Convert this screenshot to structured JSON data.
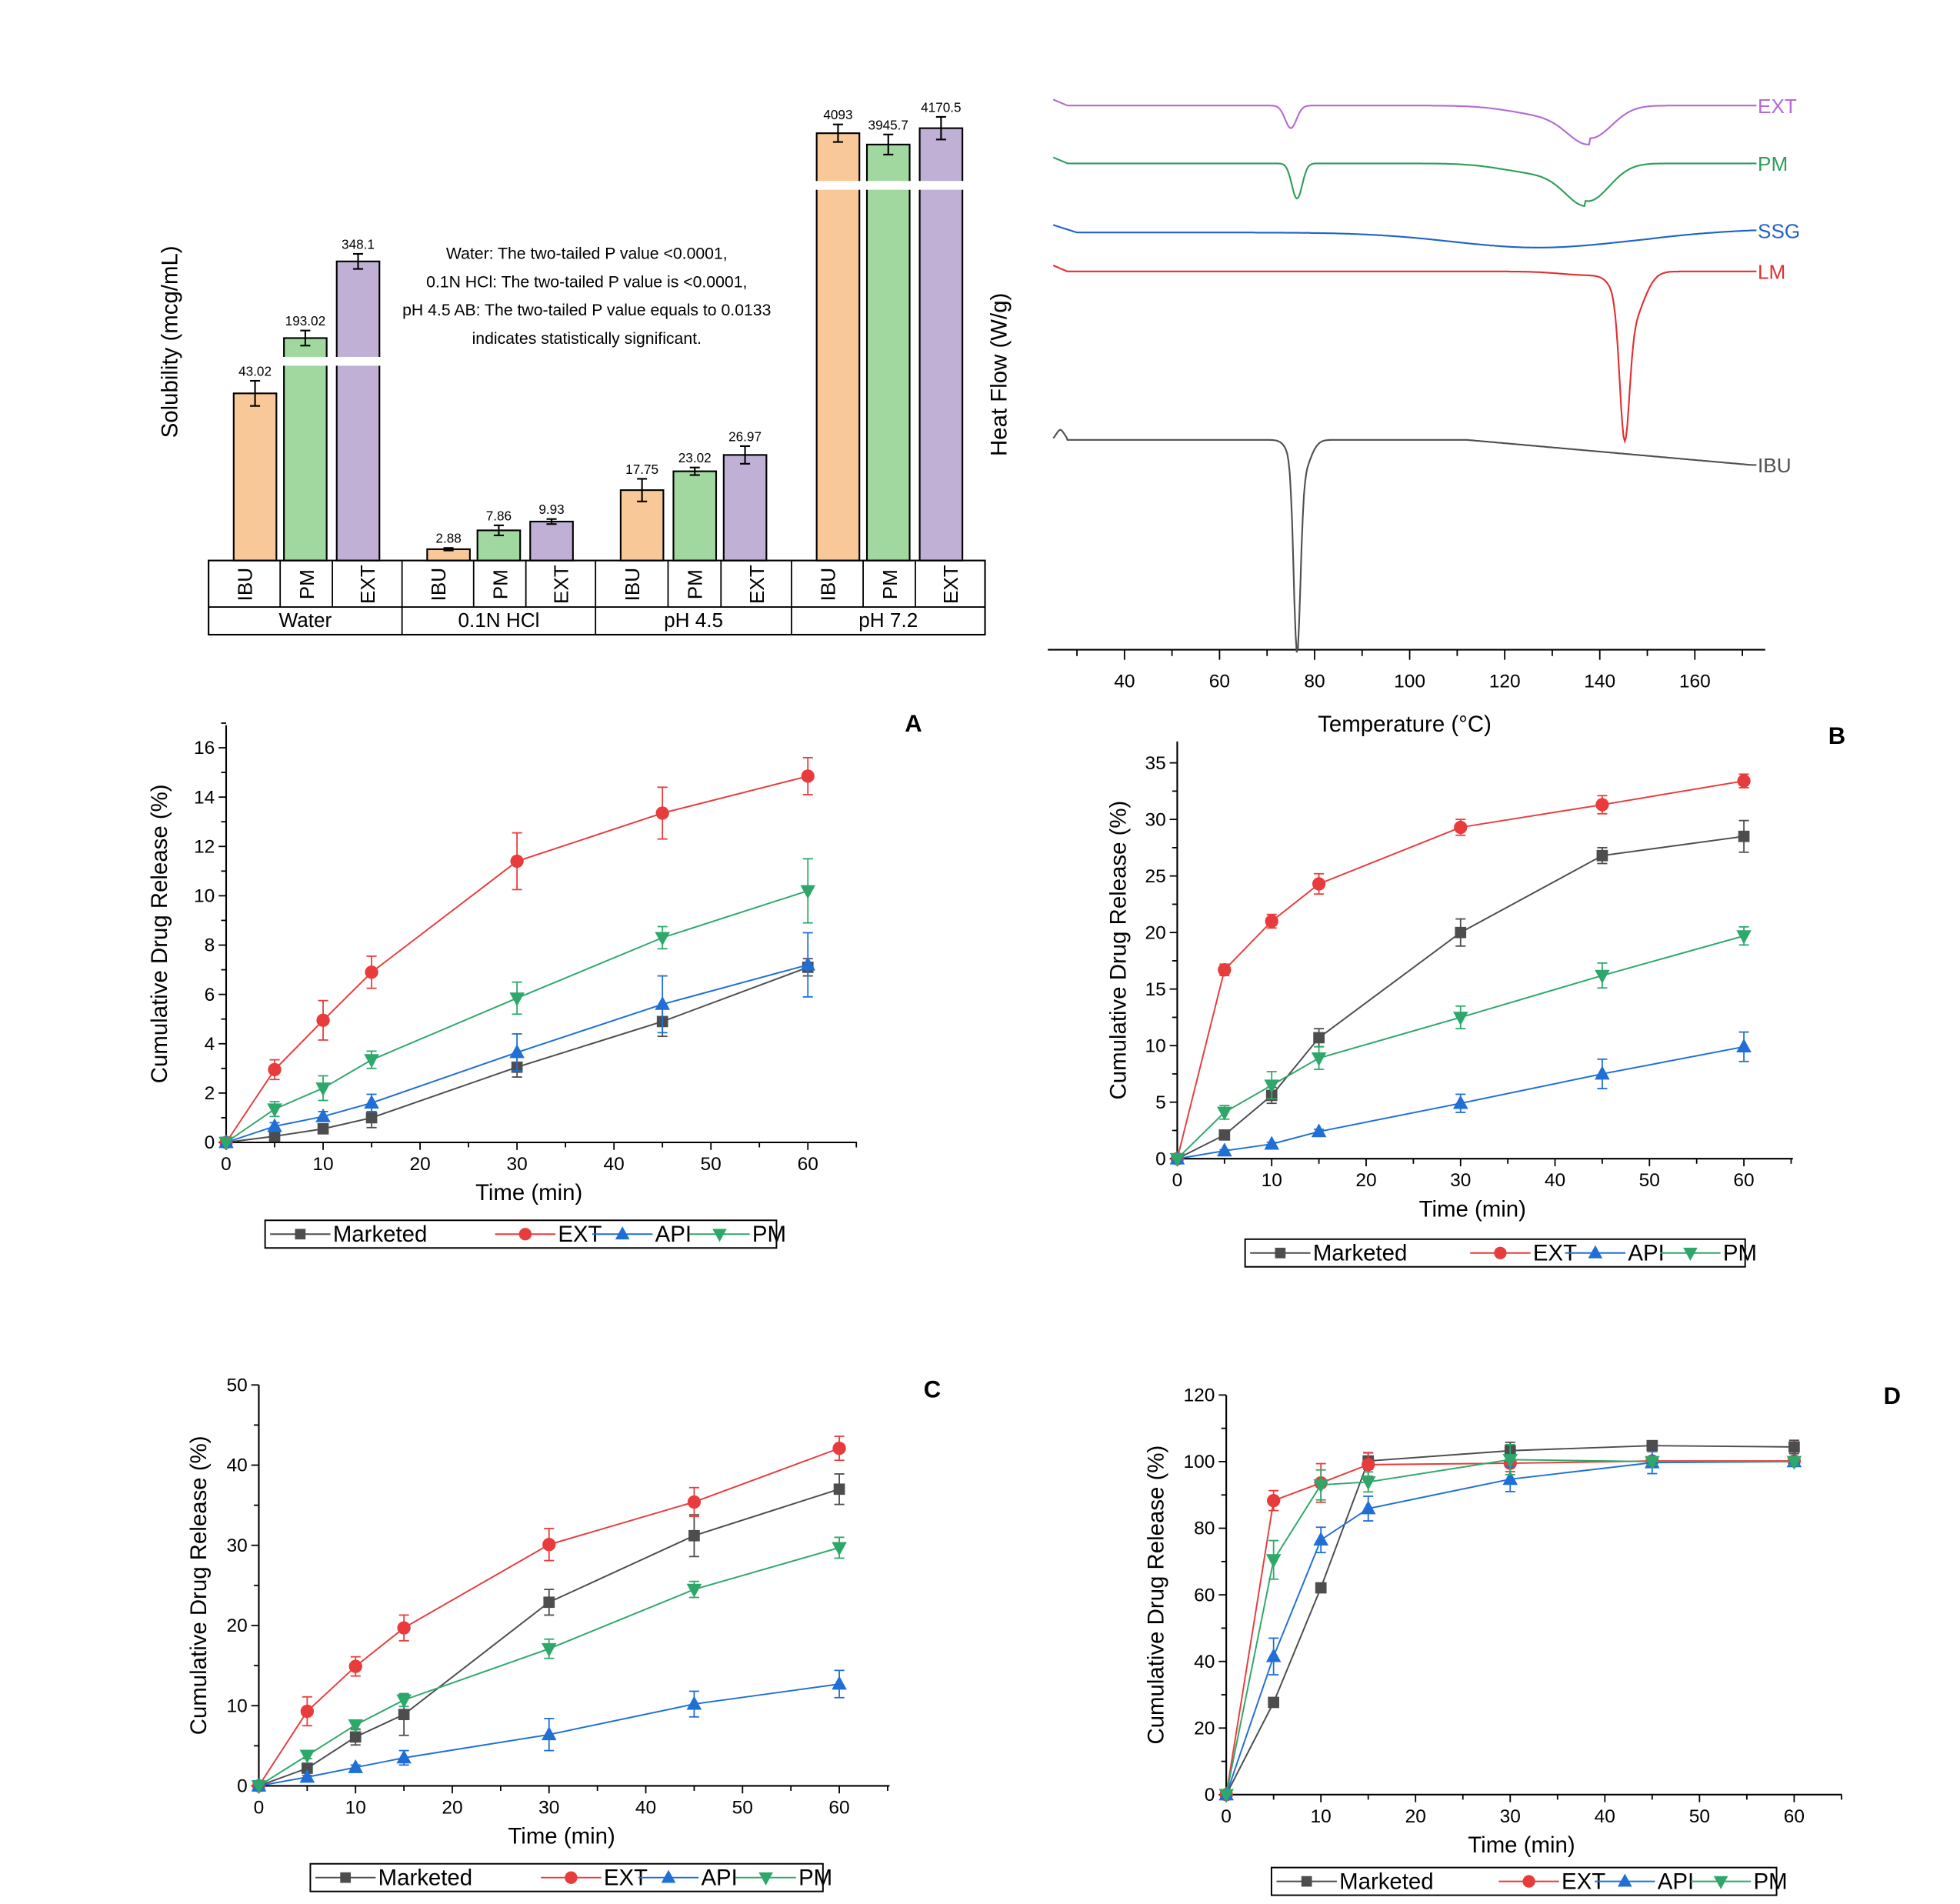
{
  "chart_data": [
    {
      "id": "solubility",
      "type": "bar",
      "ylabel": "Solubility (mcg/mL)",
      "axis_break": true,
      "groups": [
        "Water",
        "0.1N HCl",
        "pH 4.5",
        "pH 7.2"
      ],
      "categories": [
        "IBU",
        "PM",
        "EXT"
      ],
      "colors": {
        "IBU": "#f9c898",
        "PM": "#a0d8a0",
        "EXT": "#c0b0d6"
      },
      "series": [
        {
          "group": "Water",
          "values": [
            43.02,
            193.02,
            348.1
          ],
          "labels": [
            "43.02",
            "193.02",
            "348.1"
          ]
        },
        {
          "group": "0.1N HCl",
          "values": [
            2.88,
            7.86,
            9.93
          ],
          "labels": [
            "2.88",
            "7.86",
            "9.93"
          ]
        },
        {
          "group": "pH 4.5",
          "values": [
            17.75,
            23.02,
            26.97
          ],
          "labels": [
            "17.75",
            "23.02",
            "26.97"
          ]
        },
        {
          "group": "pH 7.2",
          "values": [
            4093,
            3945.7,
            4170.5
          ],
          "labels": [
            "4093",
            "3945.7",
            "4170.5"
          ]
        }
      ],
      "annotation": [
        "Water: The two-tailed P value <0.0001,",
        "0.1N HCl: The two-tailed P value is <0.0001,",
        "pH 4.5 AB: The two-tailed P value equals to 0.0133",
        "indicates statistically significant."
      ]
    },
    {
      "id": "dsc",
      "type": "line",
      "xlabel": "Temperature (°C)",
      "ylabel": "Heat Flow (W/g)",
      "xlim": [
        25,
        172
      ],
      "xticks": [
        40,
        60,
        80,
        100,
        120,
        140,
        160
      ],
      "series": [
        {
          "name": "EXT",
          "color": "#b36ad6",
          "peaks": [
            {
              "T": 75,
              "depth": "small"
            },
            {
              "T": 138,
              "depth": "broad"
            }
          ]
        },
        {
          "name": "PM",
          "color": "#2e9e5a",
          "peaks": [
            {
              "T": 76,
              "depth": "small"
            },
            {
              "T": 137,
              "depth": "broad"
            }
          ]
        },
        {
          "name": "SSG",
          "color": "#1f63c8",
          "peaks": [
            {
              "T": 125,
              "depth": "very broad"
            }
          ]
        },
        {
          "name": "LM",
          "color": "#e03030",
          "peaks": [
            {
              "T": 145,
              "depth": "sharp"
            }
          ]
        },
        {
          "name": "IBU",
          "color": "#505050",
          "peaks": [
            {
              "T": 76,
              "depth": "very sharp"
            }
          ]
        }
      ]
    },
    {
      "id": "A",
      "panel_label": "A",
      "type": "line",
      "xlabel": "Time (min)",
      "ylabel": "Cumulative Drug Release (%)",
      "xlim": [
        0,
        65
      ],
      "ylim": [
        0,
        17
      ],
      "xticks": [
        0,
        10,
        20,
        30,
        40,
        50,
        60
      ],
      "yticks": [
        0,
        2,
        4,
        6,
        8,
        10,
        12,
        14,
        16
      ],
      "x": [
        0,
        5,
        10,
        15,
        30,
        45,
        60
      ],
      "series": [
        {
          "name": "Marketed",
          "values": [
            0,
            0.25,
            0.55,
            1.0,
            3.05,
            4.9,
            7.1
          ],
          "err": [
            0,
            0.1,
            0.15,
            0.4,
            0.4,
            0.6,
            0.35
          ]
        },
        {
          "name": "EXT",
          "values": [
            0,
            2.95,
            4.95,
            6.9,
            11.4,
            13.35,
            14.85
          ],
          "err": [
            0,
            0.4,
            0.8,
            0.65,
            1.15,
            1.05,
            0.75
          ]
        },
        {
          "name": "API",
          "values": [
            0,
            0.65,
            1.05,
            1.6,
            3.65,
            5.6,
            7.2
          ],
          "err": [
            0,
            0.15,
            0.2,
            0.35,
            0.75,
            1.15,
            1.3
          ]
        },
        {
          "name": "PM",
          "values": [
            0,
            1.35,
            2.2,
            3.35,
            5.85,
            8.3,
            10.2
          ],
          "err": [
            0,
            0.3,
            0.5,
            0.35,
            0.65,
            0.45,
            1.3
          ]
        }
      ]
    },
    {
      "id": "B",
      "panel_label": "B",
      "type": "line",
      "xlabel": "Time (min)",
      "ylabel": "Cumulative Drug Release (%)",
      "xlim": [
        0,
        65
      ],
      "ylim": [
        0,
        37
      ],
      "xticks": [
        0,
        10,
        20,
        30,
        40,
        50,
        60
      ],
      "yticks": [
        0,
        5,
        10,
        15,
        20,
        25,
        30,
        35
      ],
      "x": [
        0,
        5,
        10,
        15,
        30,
        45,
        60
      ],
      "series": [
        {
          "name": "Marketed",
          "values": [
            0,
            2.1,
            5.6,
            10.7,
            20.0,
            26.8,
            28.5
          ],
          "err": [
            0,
            0.2,
            0.7,
            0.8,
            1.2,
            0.7,
            1.4
          ]
        },
        {
          "name": "EXT",
          "values": [
            0,
            16.7,
            21.0,
            24.3,
            29.3,
            31.3,
            33.4
          ],
          "err": [
            0,
            0.5,
            0.6,
            0.9,
            0.7,
            0.8,
            0.6
          ]
        },
        {
          "name": "API",
          "values": [
            0,
            0.7,
            1.3,
            2.4,
            4.9,
            7.5,
            9.9
          ],
          "err": [
            0,
            0.1,
            0.15,
            0.2,
            0.8,
            1.3,
            1.3
          ]
        },
        {
          "name": "PM",
          "values": [
            0,
            4.1,
            6.5,
            8.9,
            12.5,
            16.2,
            19.7
          ],
          "err": [
            0,
            0.6,
            1.2,
            1.0,
            1.0,
            1.1,
            0.8
          ]
        }
      ]
    },
    {
      "id": "C",
      "panel_label": "C",
      "type": "line",
      "xlabel": "Time (min)",
      "ylabel": "Cumulative Drug Release (%)",
      "xlim": [
        0,
        65
      ],
      "ylim": [
        0,
        50
      ],
      "xticks": [
        0,
        10,
        20,
        30,
        40,
        50,
        60
      ],
      "yticks": [
        0,
        10,
        20,
        30,
        40,
        50
      ],
      "x": [
        0,
        5,
        10,
        15,
        30,
        45,
        60
      ],
      "series": [
        {
          "name": "Marketed",
          "values": [
            0,
            2.2,
            6.1,
            8.9,
            22.9,
            31.2,
            37.0
          ],
          "err": [
            0,
            0.4,
            1.0,
            2.6,
            1.6,
            2.6,
            1.9
          ]
        },
        {
          "name": "EXT",
          "values": [
            0,
            9.3,
            14.9,
            19.7,
            30.1,
            35.4,
            42.1
          ],
          "err": [
            0,
            1.8,
            1.2,
            1.6,
            2.0,
            1.8,
            1.5
          ]
        },
        {
          "name": "API",
          "values": [
            0,
            1.1,
            2.3,
            3.5,
            6.4,
            10.2,
            12.7
          ],
          "err": [
            0,
            0.2,
            0.3,
            0.9,
            2.0,
            1.6,
            1.7
          ]
        },
        {
          "name": "PM",
          "values": [
            0,
            3.8,
            7.6,
            10.7,
            17.1,
            24.5,
            29.7
          ],
          "err": [
            0,
            0.4,
            0.6,
            0.8,
            1.2,
            1.0,
            1.3
          ]
        }
      ]
    },
    {
      "id": "D",
      "panel_label": "D",
      "type": "line",
      "xlabel": "Time (min)",
      "ylabel": "Cumulative Drug Release (%)",
      "xlim": [
        0,
        65
      ],
      "ylim": [
        0,
        120
      ],
      "xticks": [
        0,
        10,
        20,
        30,
        40,
        50,
        60
      ],
      "yticks": [
        0,
        20,
        40,
        60,
        80,
        100,
        120
      ],
      "x": [
        0,
        5,
        10,
        15,
        30,
        45,
        60
      ],
      "series": [
        {
          "name": "Marketed",
          "values": [
            0,
            27.7,
            62.1,
            100.2,
            103.3,
            104.8,
            104.4
          ],
          "err": [
            0,
            0.5,
            0.8,
            2.5,
            2.5,
            1.0,
            2.0
          ]
        },
        {
          "name": "EXT",
          "values": [
            0,
            88.3,
            93.6,
            99.1,
            99.5,
            100.2,
            100.2
          ],
          "err": [
            0,
            3.0,
            5.8,
            3.5,
            2.5,
            0.8,
            1.0
          ]
        },
        {
          "name": "API",
          "values": [
            0,
            41.5,
            76.5,
            85.9,
            94.7,
            99.7,
            100.0
          ],
          "err": [
            0,
            5.5,
            3.8,
            3.7,
            3.7,
            3.3,
            1.0
          ]
        },
        {
          "name": "PM",
          "values": [
            0,
            70.5,
            93.0,
            93.9,
            100.6,
            100.0,
            100.0
          ],
          "err": [
            0,
            5.8,
            4.5,
            3.0,
            4.5,
            1.0,
            1.0
          ]
        }
      ]
    }
  ],
  "legend": {
    "entries": [
      "Marketed",
      "EXT",
      "API",
      "PM"
    ],
    "colors": {
      "Marketed": "#4d4d4d",
      "EXT": "#e83c3c",
      "API": "#1f6fd6",
      "PM": "#2ea86a"
    },
    "markers": {
      "Marketed": "square",
      "EXT": "circle",
      "API": "triangle-up",
      "PM": "triangle-down"
    }
  }
}
